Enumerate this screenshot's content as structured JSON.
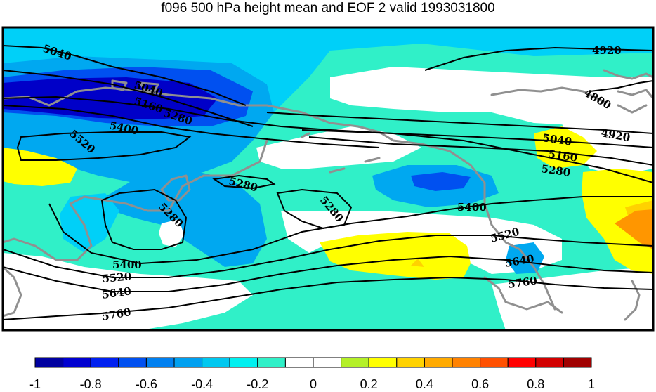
{
  "title": "f096 500 hPa height mean and EOF 2 valid 1993031800",
  "contour_labels": [
    {
      "text": "5040"
    },
    {
      "text": "5040"
    },
    {
      "text": "5160"
    },
    {
      "text": "5280"
    },
    {
      "text": "5400"
    },
    {
      "text": "5520"
    },
    {
      "text": "5280"
    },
    {
      "text": "5280"
    },
    {
      "text": "5280"
    },
    {
      "text": "4920"
    },
    {
      "text": "4800"
    },
    {
      "text": "4920"
    },
    {
      "text": "5040"
    },
    {
      "text": "5160"
    },
    {
      "text": "5280"
    },
    {
      "text": "5400"
    },
    {
      "text": "5520"
    },
    {
      "text": "5640"
    },
    {
      "text": "5760"
    },
    {
      "text": "5400"
    },
    {
      "text": "5520"
    },
    {
      "text": "5640"
    },
    {
      "text": "5760"
    }
  ],
  "colorbar": {
    "colors": [
      "#0000a0",
      "#0000d0",
      "#0020f0",
      "#0050f0",
      "#0080f0",
      "#00a0f0",
      "#00c8f0",
      "#00f0f0",
      "#30f0c8",
      "#ffffff",
      "#ffffff",
      "#b4f028",
      "#ffff00",
      "#ffd200",
      "#ffaa00",
      "#ff8200",
      "#ff5000",
      "#ff0000",
      "#d20000",
      "#a00000"
    ],
    "ticks": [
      "-1",
      "-0.8",
      "-0.6",
      "-0.4",
      "-0.2",
      "0",
      "0.2",
      "0.4",
      "0.6",
      "0.8",
      "1"
    ]
  },
  "field_colors": {
    "dark_blue": "#0000c8",
    "medium_blue": "#0050f0",
    "light_blue": "#00a8f0",
    "sky_blue": "#00d0f8",
    "teal": "#30f0c8",
    "yellow": "#ffff00",
    "gold": "#ffd200",
    "orange": "#ff9600",
    "coastline": "#909090",
    "contour": "#000000"
  }
}
